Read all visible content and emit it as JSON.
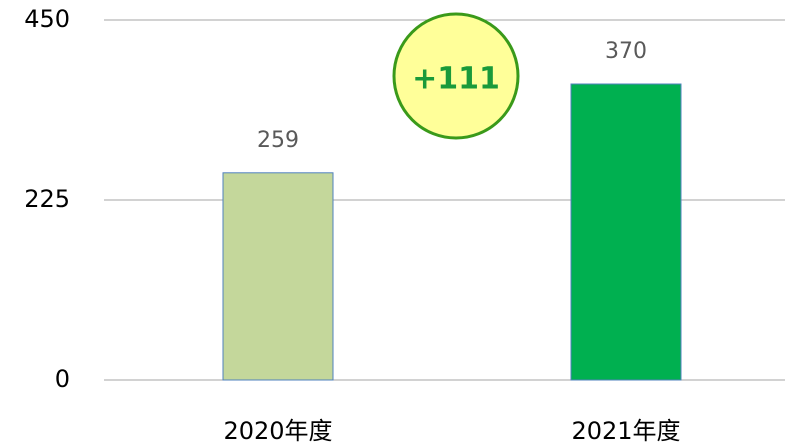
{
  "chart_data": {
    "type": "bar",
    "categories": [
      "2020年度",
      "2021年度"
    ],
    "values": [
      259,
      370
    ],
    "colors": [
      "#c4d79b",
      "#00b050"
    ],
    "ylim": [
      0,
      450
    ],
    "yticks": [
      0,
      225,
      450
    ],
    "grid": true,
    "annotation": "+111"
  }
}
